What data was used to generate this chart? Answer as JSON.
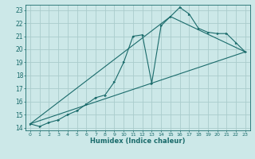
{
  "title": "",
  "xlabel": "Humidex (Indice chaleur)",
  "background_color": "#cce8e8",
  "grid_color": "#aacccc",
  "line_color": "#1a6b6b",
  "xlim": [
    -0.5,
    23.5
  ],
  "ylim": [
    13.8,
    23.4
  ],
  "xticks": [
    0,
    1,
    2,
    3,
    4,
    5,
    6,
    7,
    8,
    9,
    10,
    11,
    12,
    13,
    14,
    15,
    16,
    17,
    18,
    19,
    20,
    21,
    22,
    23
  ],
  "yticks": [
    14,
    15,
    16,
    17,
    18,
    19,
    20,
    21,
    22,
    23
  ],
  "line1_x": [
    0,
    1,
    2,
    3,
    4,
    5,
    6,
    7,
    8,
    9,
    10,
    11,
    12,
    13,
    14,
    15,
    16,
    17,
    18,
    19,
    20,
    21,
    22,
    23
  ],
  "line1_y": [
    14.3,
    14.1,
    14.4,
    14.6,
    15.0,
    15.3,
    15.8,
    16.3,
    16.5,
    17.5,
    19.0,
    21.0,
    21.1,
    17.4,
    21.8,
    22.5,
    23.2,
    22.7,
    21.6,
    21.3,
    21.2,
    21.2,
    20.5,
    19.8
  ],
  "line2_x": [
    0,
    23
  ],
  "line2_y": [
    14.3,
    19.8
  ],
  "line3_x": [
    0,
    15,
    23
  ],
  "line3_y": [
    14.3,
    22.5,
    19.8
  ]
}
